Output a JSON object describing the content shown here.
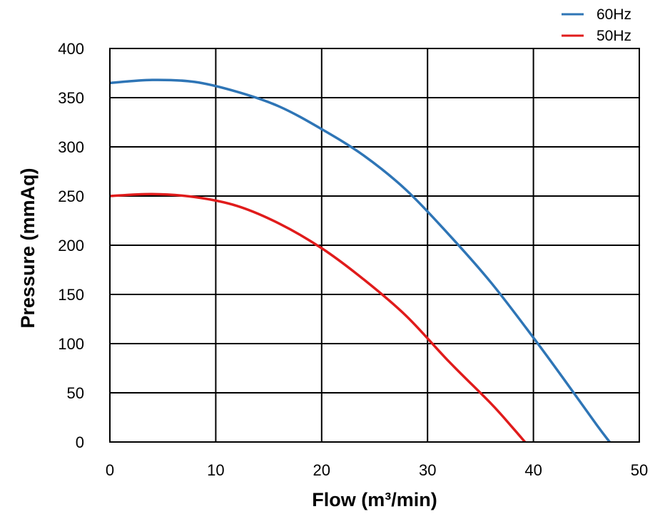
{
  "chart_data": {
    "type": "line",
    "title": "",
    "xlabel": "Flow (m³/min)",
    "ylabel": "Pressure (mmAq)",
    "xlim": [
      0,
      50
    ],
    "ylim": [
      0,
      400
    ],
    "x_ticks": [
      "0",
      "10",
      "20",
      "30",
      "40",
      "50"
    ],
    "y_ticks": [
      "0",
      "50",
      "100",
      "150",
      "200",
      "250",
      "300",
      "350",
      "400"
    ],
    "grid": true,
    "legend_position": "top-right",
    "series": [
      {
        "name": "60Hz",
        "color": "#2e75b6",
        "x": [
          0,
          4,
          8,
          12,
          16,
          20,
          24,
          28,
          32,
          36,
          40,
          43,
          46,
          47.2
        ],
        "y": [
          365,
          368,
          366,
          356,
          341,
          318,
          291,
          256,
          211,
          162,
          106,
          62,
          17,
          0
        ]
      },
      {
        "name": "50Hz",
        "color": "#e01b1b",
        "x": [
          0,
          4,
          8,
          12,
          16,
          20,
          24,
          28,
          32,
          36,
          38,
          39.2
        ],
        "y": [
          250,
          252,
          249,
          240,
          222,
          197,
          165,
          128,
          82,
          39,
          15,
          0
        ]
      }
    ]
  }
}
